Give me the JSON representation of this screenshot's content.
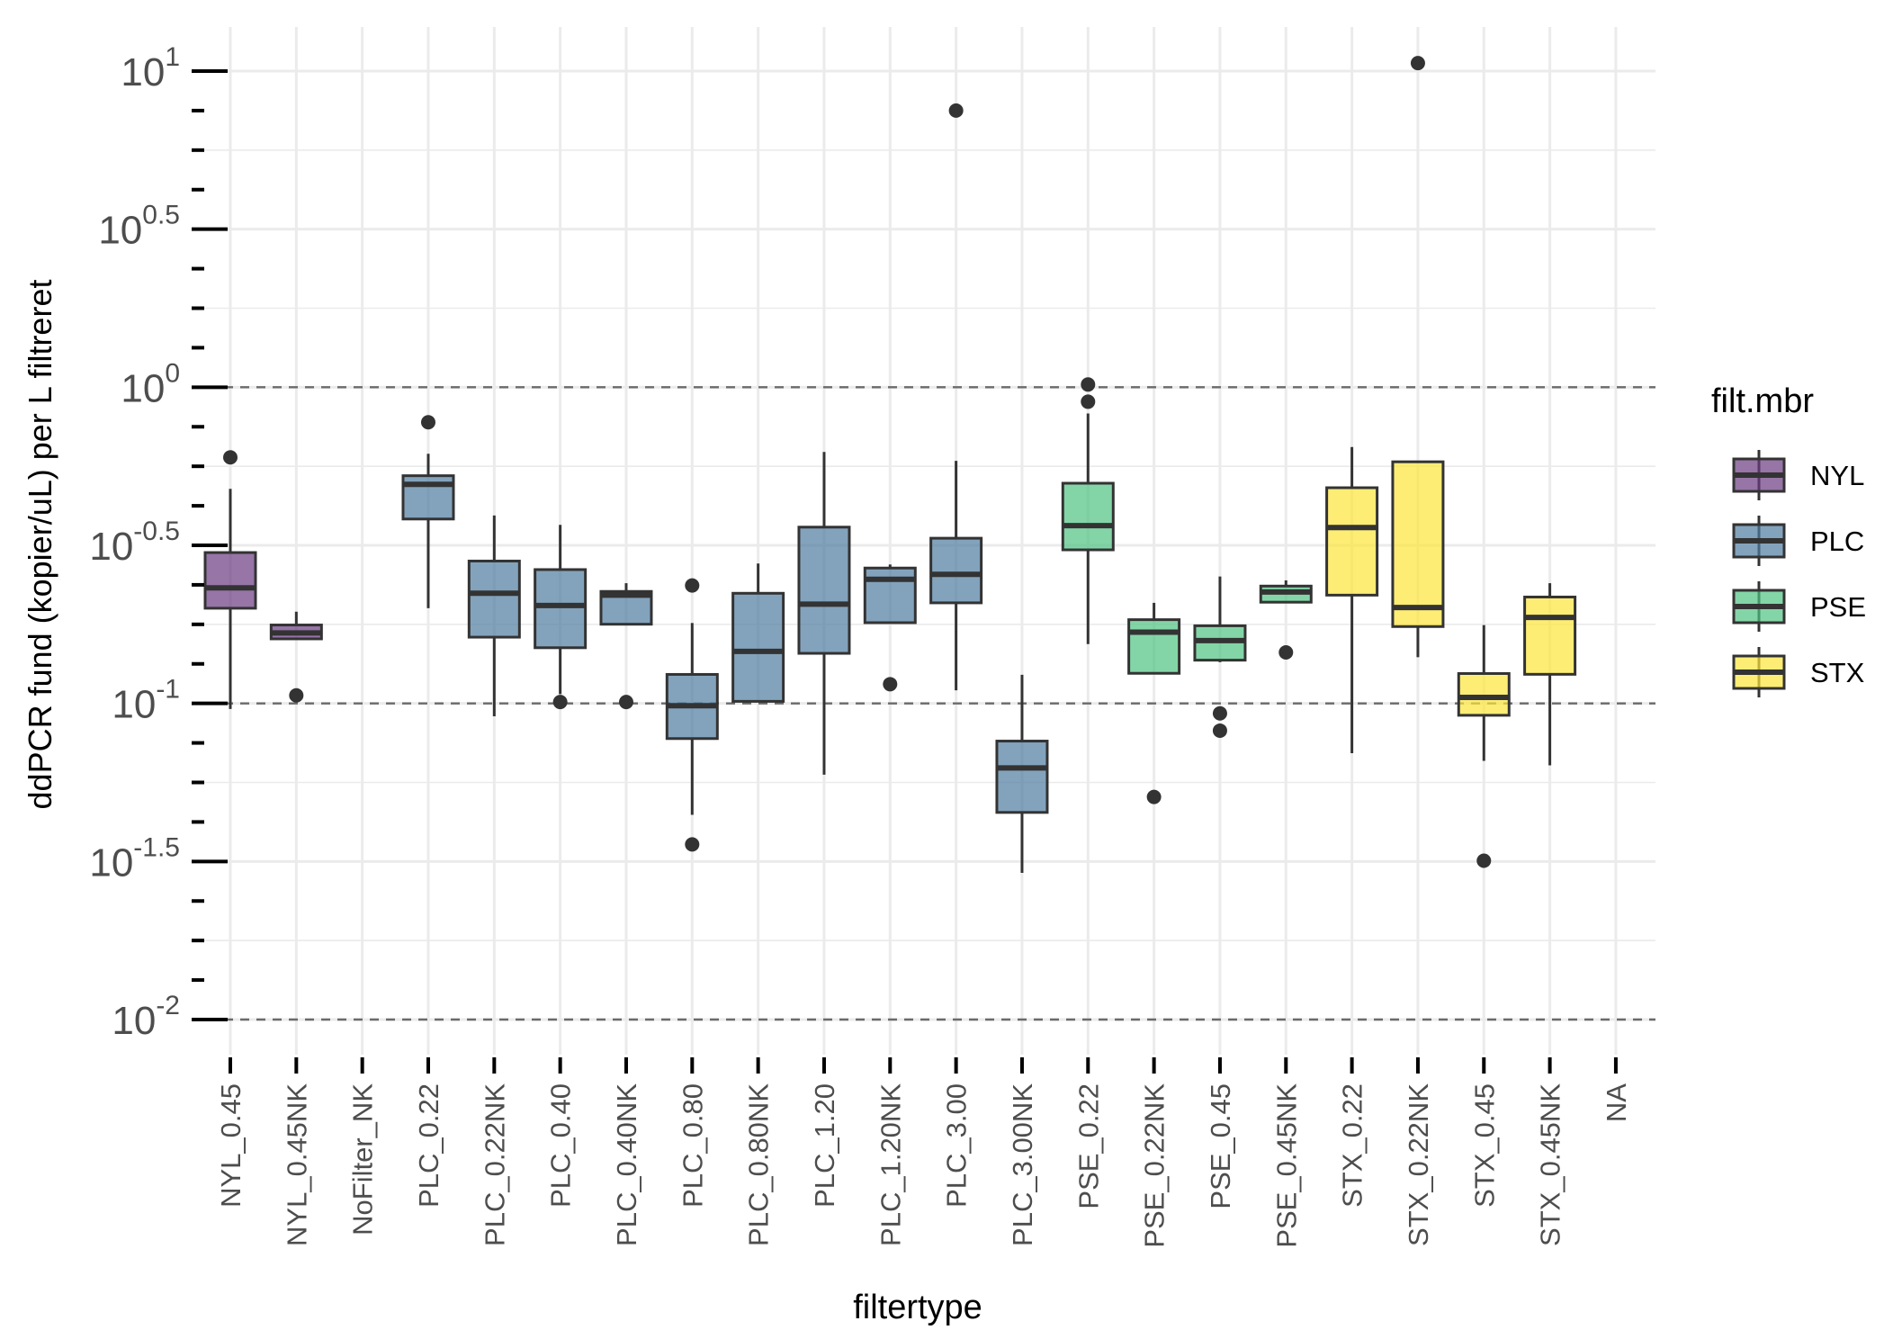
{
  "chart_data": {
    "type": "boxplot",
    "xlabel": "filtertype",
    "ylabel": "ddPCR fund (kopier/uL) per L filtreret",
    "y_scale": "log10",
    "ylim": [
      0.0076,
      13.0
    ],
    "y_ticks": [
      {
        "value": 10,
        "base": "10",
        "exp": "1"
      },
      {
        "value": 3.1623,
        "base": "10",
        "exp": "0.5"
      },
      {
        "value": 1,
        "base": "10",
        "exp": "0"
      },
      {
        "value": 0.31623,
        "base": "10",
        "exp": "-0.5"
      },
      {
        "value": 0.1,
        "base": "10",
        "exp": "-1"
      },
      {
        "value": 0.031623,
        "base": "10",
        "exp": "-1.5"
      },
      {
        "value": 0.01,
        "base": "10",
        "exp": "-2"
      }
    ],
    "reference_lines": [
      1,
      0.1,
      0.01
    ],
    "grid": true,
    "legend_title": "filt.mbr",
    "legend_position": "right",
    "groups": [
      {
        "name": "NYL",
        "color": "#6b3b82"
      },
      {
        "name": "PLC",
        "color": "#4f7c9f"
      },
      {
        "name": "PSE",
        "color": "#4ec382"
      },
      {
        "name": "STX",
        "color": "#fde63a"
      }
    ],
    "categories": [
      "NYL_0.45",
      "NYL_0.45NK",
      "NoFilter_NK",
      "PLC_0.22",
      "PLC_0.22NK",
      "PLC_0.40",
      "PLC_0.40NK",
      "PLC_0.80",
      "PLC_0.80NK",
      "PLC_1.20",
      "PLC_1.20NK",
      "PLC_3.00",
      "PLC_3.00NK",
      "PSE_0.22",
      "PSE_0.22NK",
      "PSE_0.45",
      "PSE_0.45NK",
      "STX_0.22",
      "STX_0.22NK",
      "STX_0.45",
      "STX_0.45NK",
      "NA"
    ],
    "boxes": [
      {
        "category": "NYL_0.45",
        "group": "NYL",
        "whisker_low": 0.096,
        "q1": 0.2,
        "median": 0.232,
        "q3": 0.3,
        "whisker_high": 0.477,
        "outliers": [
          0.6
        ]
      },
      {
        "category": "NYL_0.45NK",
        "group": "NYL",
        "whisker_low": 0.16,
        "q1": 0.16,
        "median": 0.167,
        "q3": 0.177,
        "whisker_high": 0.195,
        "outliers": [
          0.106
        ]
      },
      {
        "category": "NoFilter_NK",
        "group": null,
        "whisker_low": null,
        "q1": null,
        "median": null,
        "q3": null,
        "whisker_high": null,
        "outliers": []
      },
      {
        "category": "PLC_0.22",
        "group": "PLC",
        "whisker_low": 0.2,
        "q1": 0.383,
        "median": 0.493,
        "q3": 0.525,
        "whisker_high": 0.616,
        "outliers": [
          0.775
        ]
      },
      {
        "category": "PLC_0.22NK",
        "group": "PLC",
        "whisker_low": 0.091,
        "q1": 0.162,
        "median": 0.223,
        "q3": 0.282,
        "whisker_high": 0.393,
        "outliers": []
      },
      {
        "category": "PLC_0.40",
        "group": "PLC",
        "whisker_low": 0.107,
        "q1": 0.15,
        "median": 0.204,
        "q3": 0.265,
        "whisker_high": 0.367,
        "outliers": [
          0.101
        ]
      },
      {
        "category": "PLC_0.40NK",
        "group": "PLC",
        "whisker_low": 0.178,
        "q1": 0.178,
        "median": 0.22,
        "q3": 0.226,
        "whisker_high": 0.24,
        "outliers": [
          0.101
        ]
      },
      {
        "category": "PLC_0.80",
        "group": "PLC",
        "whisker_low": 0.0444,
        "q1": 0.0774,
        "median": 0.0983,
        "q3": 0.1235,
        "whisker_high": 0.1796,
        "outliers": [
          0.236,
          0.0358
        ]
      },
      {
        "category": "PLC_0.80NK",
        "group": "PLC",
        "whisker_low": 0.1015,
        "q1": 0.1015,
        "median": 0.146,
        "q3": 0.223,
        "whisker_high": 0.277,
        "outliers": []
      },
      {
        "category": "PLC_1.20",
        "group": "PLC",
        "whisker_low": 0.0595,
        "q1": 0.144,
        "median": 0.206,
        "q3": 0.361,
        "whisker_high": 0.624,
        "outliers": []
      },
      {
        "category": "PLC_1.20NK",
        "group": "PLC",
        "whisker_low": 0.18,
        "q1": 0.18,
        "median": 0.247,
        "q3": 0.268,
        "whisker_high": 0.275,
        "outliers": [
          0.115
        ]
      },
      {
        "category": "PLC_3.00",
        "group": "PLC",
        "whisker_low": 0.11,
        "q1": 0.208,
        "median": 0.256,
        "q3": 0.333,
        "whisker_high": 0.585,
        "outliers": [
          7.5
        ]
      },
      {
        "category": "PLC_3.00NK",
        "group": "PLC",
        "whisker_low": 0.0291,
        "q1": 0.0452,
        "median": 0.0625,
        "q3": 0.076,
        "whisker_high": 0.1232,
        "outliers": []
      },
      {
        "category": "PSE_0.22",
        "group": "PSE",
        "whisker_low": 0.154,
        "q1": 0.306,
        "median": 0.365,
        "q3": 0.497,
        "whisker_high": 0.826,
        "outliers": [
          1.02,
          0.9
        ]
      },
      {
        "category": "PSE_0.22NK",
        "group": "PSE",
        "whisker_low": 0.1245,
        "q1": 0.1245,
        "median": 0.168,
        "q3": 0.184,
        "whisker_high": 0.208,
        "outliers": [
          0.0506
        ]
      },
      {
        "category": "PSE_0.45",
        "group": "PSE",
        "whisker_low": 0.135,
        "q1": 0.137,
        "median": 0.158,
        "q3": 0.176,
        "whisker_high": 0.252,
        "outliers": [
          0.093,
          0.082
        ]
      },
      {
        "category": "PSE_0.45NK",
        "group": "PSE",
        "whisker_low": 0.209,
        "q1": 0.209,
        "median": 0.225,
        "q3": 0.235,
        "whisker_high": 0.245,
        "outliers": [
          0.145
        ]
      },
      {
        "category": "STX_0.22",
        "group": "STX",
        "whisker_low": 0.0696,
        "q1": 0.22,
        "median": 0.36,
        "q3": 0.481,
        "whisker_high": 0.647,
        "outliers": []
      },
      {
        "category": "STX_0.22NK",
        "group": "STX",
        "whisker_low": 0.14,
        "q1": 0.175,
        "median": 0.201,
        "q3": 0.581,
        "whisker_high": 0.581,
        "outliers": [
          10.6
        ]
      },
      {
        "category": "STX_0.45",
        "group": "STX",
        "whisker_low": 0.0658,
        "q1": 0.0917,
        "median": 0.1045,
        "q3": 0.1243,
        "whisker_high": 0.1769,
        "outliers": [
          0.0318
        ]
      },
      {
        "category": "STX_0.45NK",
        "group": "STX",
        "whisker_low": 0.0637,
        "q1": 0.1236,
        "median": 0.187,
        "q3": 0.217,
        "whisker_high": 0.24,
        "outliers": []
      },
      {
        "category": "NA",
        "group": null,
        "whisker_low": null,
        "q1": null,
        "median": null,
        "q3": null,
        "whisker_high": null,
        "outliers": []
      }
    ]
  }
}
